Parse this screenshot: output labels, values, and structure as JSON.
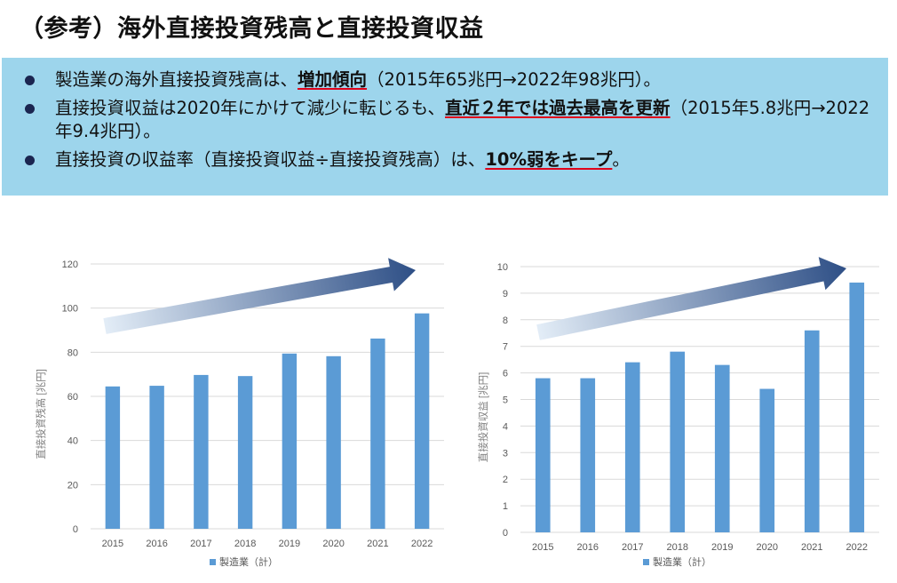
{
  "title": "（参考）海外直接投資残高と直接投資収益",
  "bullets": [
    {
      "pre": "製造業の海外直接投資残高は、",
      "em": "増加傾向",
      "post": "（2015年65兆円→2022年98兆円）。"
    },
    {
      "pre": "直接投資収益は2020年にかけて減少に転じるも、",
      "em": "直近２年では過去最高を更新",
      "post": "（2015年5.8兆円→2022年9.4兆円）。"
    },
    {
      "pre": "直接投資の収益率（直接投資収益÷直接投資残高）は、",
      "em": "10%弱をキープ",
      "post": "。"
    }
  ],
  "colors": {
    "bar": "#5b9bd5",
    "band": "#9dd5ec",
    "arrow_dark": "#2e4f86",
    "arrow_light": "#e3edf7"
  },
  "chart_data": [
    {
      "type": "bar",
      "categories": [
        "2015",
        "2016",
        "2017",
        "2018",
        "2019",
        "2020",
        "2021",
        "2022"
      ],
      "values": [
        64.5,
        64.8,
        69.7,
        69.2,
        79.4,
        78.2,
        86.2,
        97.6
      ],
      "ylabel": "直接投資残高 [兆円]",
      "ylim": [
        0,
        120
      ],
      "yticks": [
        0,
        20,
        40,
        60,
        80,
        100,
        120
      ],
      "legend": "製造業（計）",
      "legend_position": "bottom",
      "grid": true
    },
    {
      "type": "bar",
      "categories": [
        "2015",
        "2016",
        "2017",
        "2018",
        "2019",
        "2020",
        "2021",
        "2022"
      ],
      "values": [
        5.8,
        5.8,
        6.4,
        6.8,
        6.3,
        5.4,
        7.6,
        9.4
      ],
      "ylabel": "直接投資収益 [兆円]",
      "ylim": [
        0,
        10
      ],
      "yticks": [
        0,
        1,
        2,
        3,
        4,
        5,
        6,
        7,
        8,
        9,
        10
      ],
      "legend": "製造業（計）",
      "legend_position": "bottom",
      "grid": true
    }
  ]
}
